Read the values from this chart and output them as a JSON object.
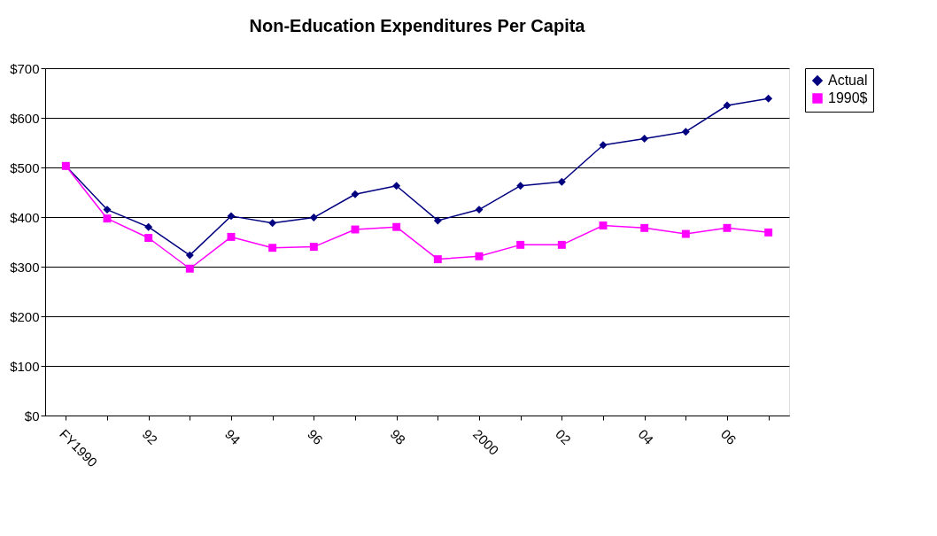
{
  "chart_data": {
    "type": "line",
    "title": "Non-Education Expenditures Per Capita",
    "categories": [
      "FY1990",
      null,
      "92",
      null,
      "94",
      null,
      "96",
      null,
      "98",
      null,
      "2000",
      null,
      "02",
      null,
      "04",
      null,
      "06",
      null
    ],
    "series": [
      {
        "name": "Actual",
        "color": "#000080",
        "marker": "diamond",
        "values": [
          503,
          415,
          380,
          323,
          402,
          388,
          399,
          446,
          463,
          393,
          415,
          463,
          471,
          545,
          558,
          572,
          625,
          639
        ]
      },
      {
        "name": "1990$",
        "color": "#ff00ff",
        "marker": "square",
        "values": [
          503,
          397,
          358,
          296,
          360,
          338,
          340,
          375,
          380,
          315,
          321,
          344,
          344,
          383,
          378,
          366,
          378,
          369
        ]
      }
    ],
    "ylim": [
      0,
      700
    ],
    "yticks": [
      {
        "value": 0,
        "label": "$0"
      },
      {
        "value": 100,
        "label": "$100"
      },
      {
        "value": 200,
        "label": "$200"
      },
      {
        "value": 300,
        "label": "$300"
      },
      {
        "value": 400,
        "label": "$400"
      },
      {
        "value": 500,
        "label": "$500"
      },
      {
        "value": 600,
        "label": "$600"
      },
      {
        "value": 700,
        "label": "$700"
      }
    ],
    "grid": "y",
    "legend": "right",
    "line_style": "solid"
  }
}
